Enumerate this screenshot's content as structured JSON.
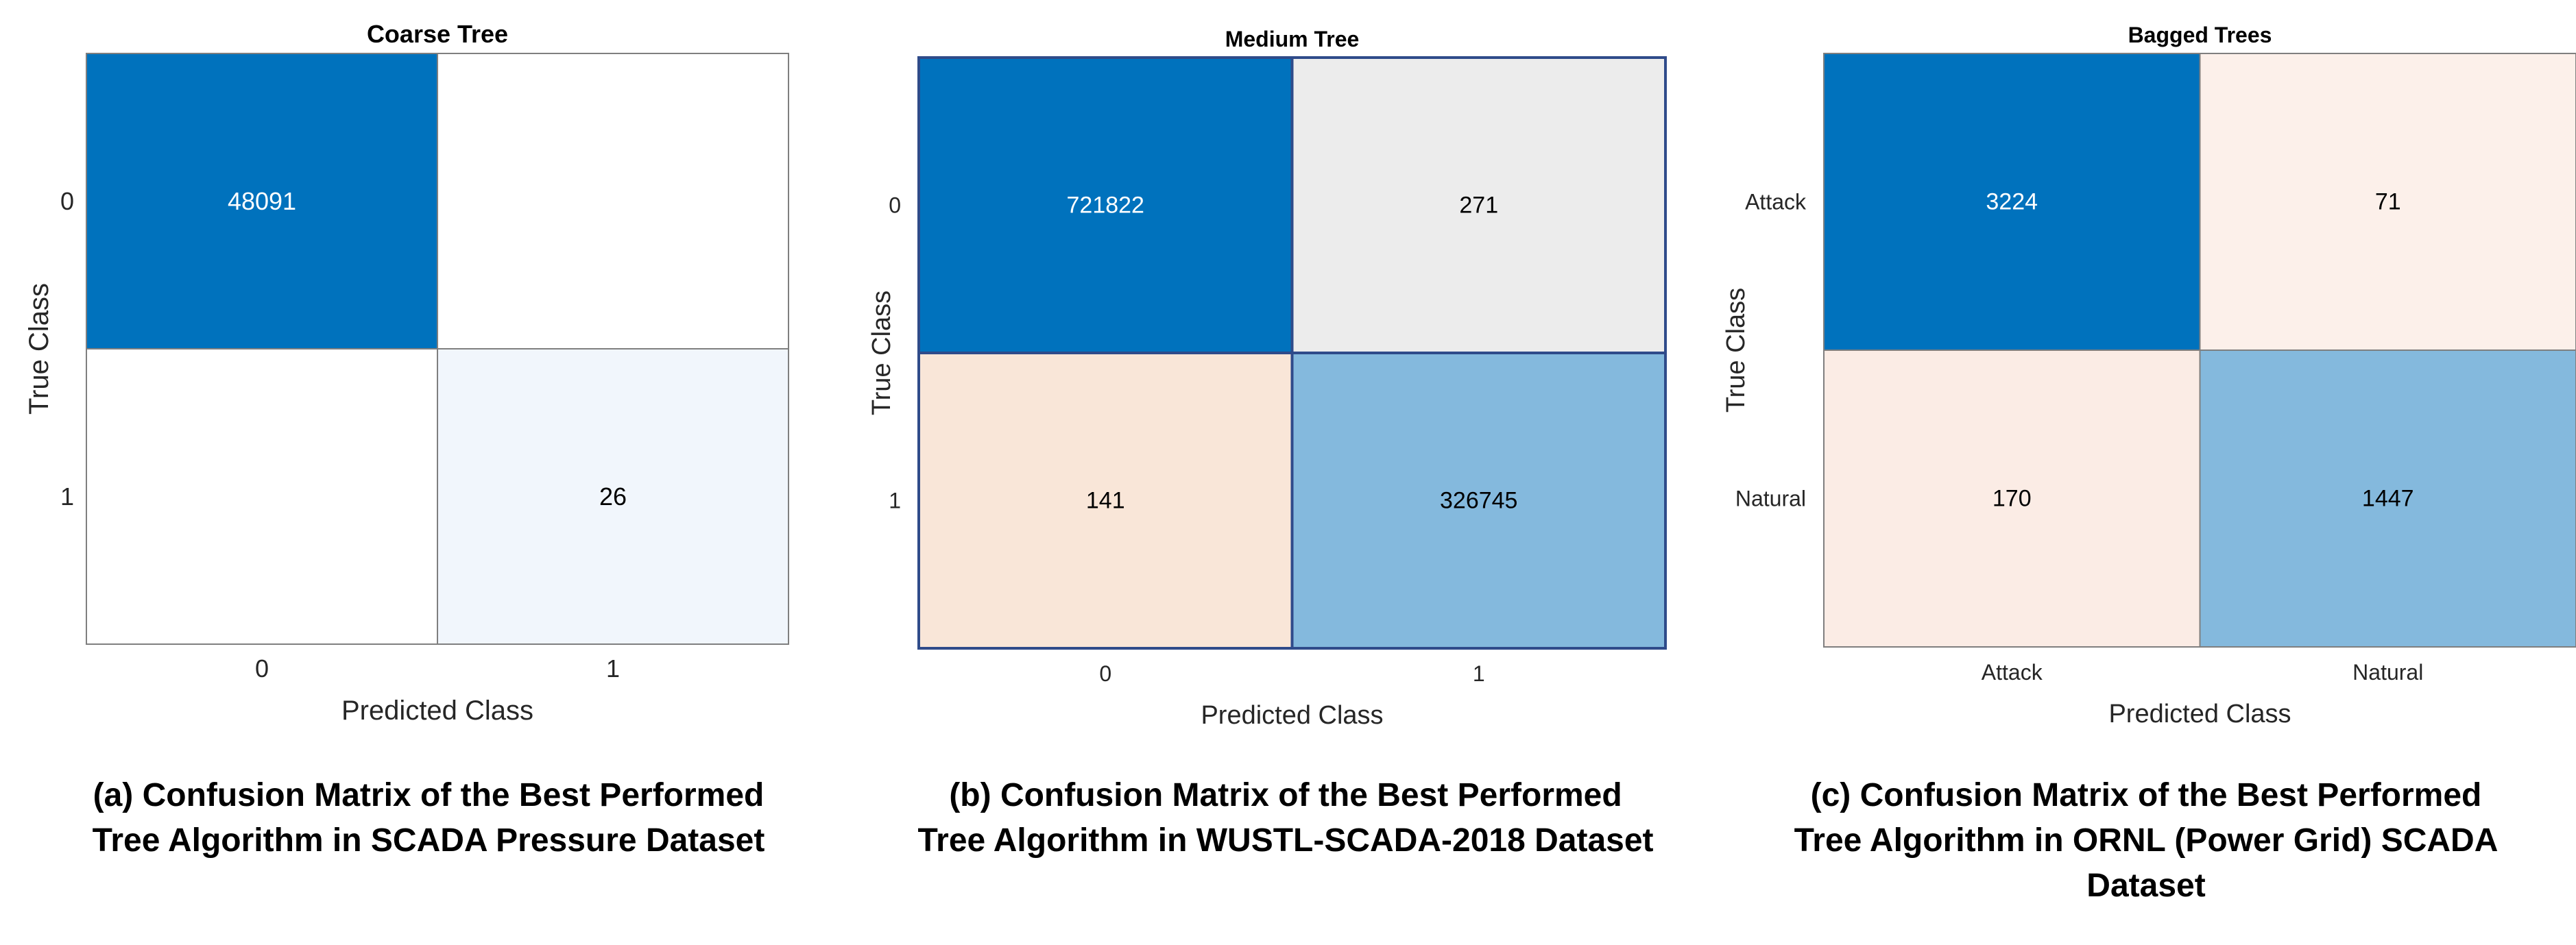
{
  "chart_data": [
    {
      "type": "heatmap",
      "title": "Coarse Tree",
      "xlabel": "Predicted Class",
      "ylabel": "True Class",
      "x_categories": [
        "0",
        "1"
      ],
      "y_categories": [
        "0",
        "1"
      ],
      "values": [
        [
          48091,
          null
        ],
        [
          null,
          26
        ]
      ],
      "cell_colors": [
        [
          "#0072bd",
          "#ffffff"
        ],
        [
          "#ffffff",
          "#f1f6fc"
        ]
      ],
      "caption_lines": [
        "(a) Confusion Matrix of the Best Performed",
        "Tree Algorithm in SCADA Pressure Dataset"
      ]
    },
    {
      "type": "heatmap",
      "title": "Medium Tree",
      "xlabel": "Predicted Class",
      "ylabel": "True Class",
      "x_categories": [
        "0",
        "1"
      ],
      "y_categories": [
        "0",
        "1"
      ],
      "values": [
        [
          721822,
          271
        ],
        [
          141,
          326745
        ]
      ],
      "cell_colors": [
        [
          "#0072bd",
          "#ececec"
        ],
        [
          "#f9e6d8",
          "#84b9dd"
        ]
      ],
      "caption_lines": [
        "(b) Confusion Matrix of the Best Performed",
        "Tree Algorithm in WUSTL-SCADA-2018 Dataset"
      ]
    },
    {
      "type": "heatmap",
      "title": "Bagged Trees",
      "xlabel": "Predicted Class",
      "ylabel": "True Class",
      "x_categories": [
        "Attack",
        "Natural"
      ],
      "y_categories": [
        "Attack",
        "Natural"
      ],
      "values": [
        [
          3224,
          71
        ],
        [
          170,
          1447
        ]
      ],
      "cell_colors": [
        [
          "#0072bd",
          "#fcf0ea"
        ],
        [
          "#fbece5",
          "#84b9dd"
        ]
      ],
      "caption_lines": [
        "(c) Confusion Matrix of the Best Performed",
        "Tree Algorithm in ORNL (Power Grid) SCADA",
        "Dataset"
      ]
    }
  ]
}
